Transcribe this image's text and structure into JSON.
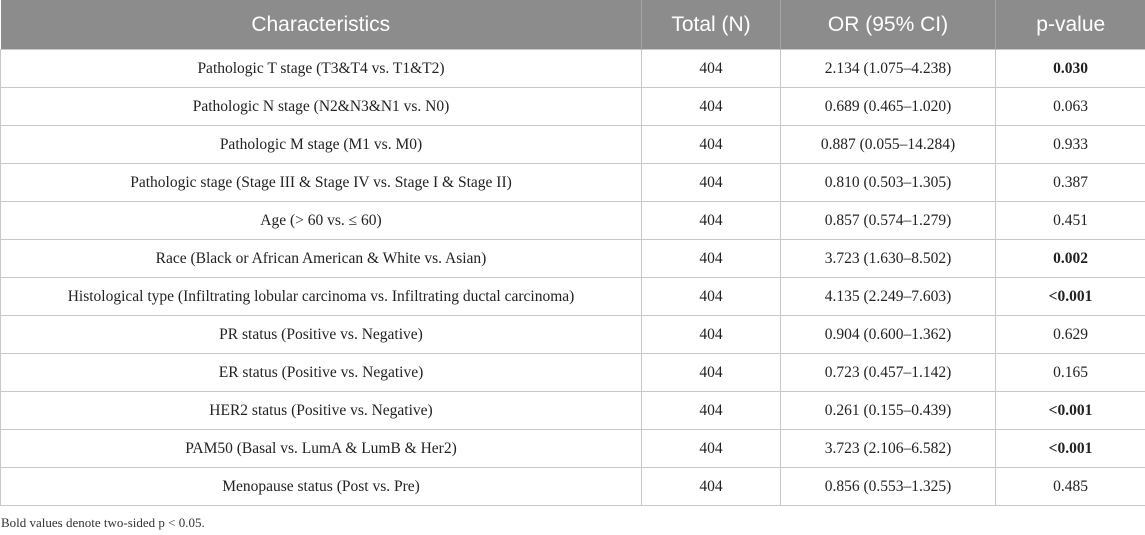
{
  "table": {
    "headers": [
      "Characteristics",
      "Total (N)",
      "OR (95% CI)",
      "p-value"
    ],
    "rows": [
      {
        "characteristic": "Pathologic T stage (T3&T4 vs. T1&T2)",
        "total": "404",
        "or_ci": "2.134 (1.075–4.238)",
        "p_value": "0.030",
        "significant": true
      },
      {
        "characteristic": "Pathologic N stage (N2&N3&N1 vs. N0)",
        "total": "404",
        "or_ci": "0.689 (0.465–1.020)",
        "p_value": "0.063",
        "significant": false
      },
      {
        "characteristic": "Pathologic M stage (M1 vs. M0)",
        "total": "404",
        "or_ci": "0.887 (0.055–14.284)",
        "p_value": "0.933",
        "significant": false
      },
      {
        "characteristic": "Pathologic stage (Stage III & Stage IV vs. Stage I & Stage II)",
        "total": "404",
        "or_ci": "0.810 (0.503–1.305)",
        "p_value": "0.387",
        "significant": false
      },
      {
        "characteristic": "Age (> 60 vs. ≤ 60)",
        "total": "404",
        "or_ci": "0.857 (0.574–1.279)",
        "p_value": "0.451",
        "significant": false
      },
      {
        "characteristic": "Race (Black or African American & White vs. Asian)",
        "total": "404",
        "or_ci": "3.723 (1.630–8.502)",
        "p_value": "0.002",
        "significant": true
      },
      {
        "characteristic": "Histological type (Infiltrating lobular carcinoma vs. Infiltrating ductal carcinoma)",
        "total": "404",
        "or_ci": "4.135 (2.249–7.603)",
        "p_value": "<0.001",
        "significant": true
      },
      {
        "characteristic": "PR status (Positive vs. Negative)",
        "total": "404",
        "or_ci": "0.904 (0.600–1.362)",
        "p_value": "0.629",
        "significant": false
      },
      {
        "characteristic": "ER status (Positive vs. Negative)",
        "total": "404",
        "or_ci": "0.723 (0.457–1.142)",
        "p_value": "0.165",
        "significant": false
      },
      {
        "characteristic": "HER2 status (Positive vs. Negative)",
        "total": "404",
        "or_ci": "0.261 (0.155–0.439)",
        "p_value": "<0.001",
        "significant": true
      },
      {
        "characteristic": "PAM50 (Basal vs. LumA & LumB & Her2)",
        "total": "404",
        "or_ci": "3.723 (2.106–6.582)",
        "p_value": "<0.001",
        "significant": true
      },
      {
        "characteristic": "Menopause status (Post vs. Pre)",
        "total": "404",
        "or_ci": "0.856 (0.553–1.325)",
        "p_value": "0.485",
        "significant": false
      }
    ]
  },
  "footnote": "Bold values denote two-sided p < 0.05.",
  "colors": {
    "header_background": "#8c8c8c",
    "header_text": "#ffffff",
    "grid_lines": "#c8c8c8"
  }
}
